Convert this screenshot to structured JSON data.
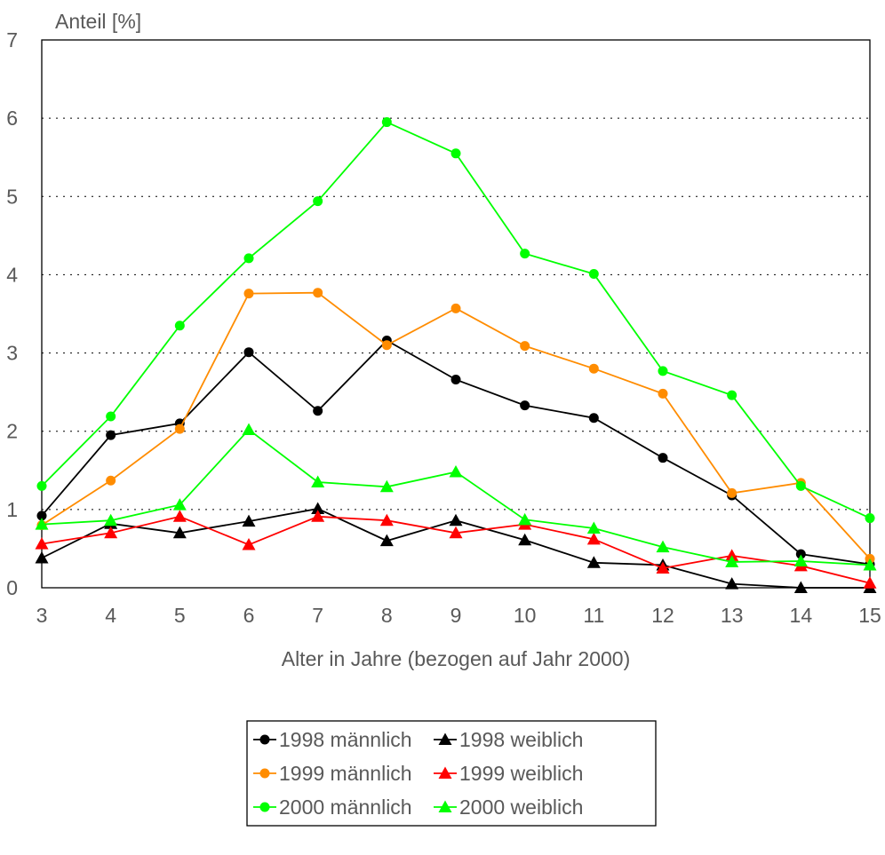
{
  "chart_data": {
    "type": "line",
    "ylabel": "Anteil [%]",
    "xlabel": "Alter in Jahre (bezogen auf Jahr 2000)",
    "x": [
      3,
      4,
      5,
      6,
      7,
      8,
      9,
      10,
      11,
      12,
      13,
      14,
      15
    ],
    "xlim": [
      3,
      15
    ],
    "ylim": [
      0,
      7
    ],
    "yticks": [
      0,
      1,
      2,
      3,
      4,
      5,
      6,
      7
    ],
    "grid": "horizontal dotted",
    "legend_position": "bottom-center",
    "series": [
      {
        "name": "1998 männlich",
        "color": "#000000",
        "marker": "circle",
        "values": [
          0.92,
          1.95,
          2.1,
          3.01,
          2.26,
          3.16,
          2.66,
          2.33,
          2.17,
          1.66,
          1.18,
          0.43,
          0.3
        ]
      },
      {
        "name": "1998 weiblich",
        "color": "#000000",
        "marker": "triangle",
        "values": [
          0.38,
          0.82,
          0.7,
          0.85,
          1.01,
          0.6,
          0.86,
          0.61,
          0.32,
          0.29,
          0.05,
          0.0,
          0.0
        ]
      },
      {
        "name": "1999 männlich",
        "color": "#ff8c00",
        "marker": "circle",
        "values": [
          0.8,
          1.37,
          2.03,
          3.76,
          3.77,
          3.1,
          3.57,
          3.09,
          2.8,
          2.48,
          1.21,
          1.34,
          0.37
        ]
      },
      {
        "name": "1999 weiblich",
        "color": "#ff0000",
        "marker": "triangle",
        "values": [
          0.56,
          0.7,
          0.91,
          0.55,
          0.91,
          0.86,
          0.7,
          0.81,
          0.62,
          0.25,
          0.41,
          0.28,
          0.06
        ]
      },
      {
        "name": "2000 männlich",
        "color": "#00ff00",
        "marker": "circle",
        "values": [
          1.3,
          2.19,
          3.35,
          4.21,
          4.94,
          5.95,
          5.55,
          4.27,
          4.01,
          2.77,
          2.46,
          1.3,
          0.89
        ]
      },
      {
        "name": "2000 weiblich",
        "color": "#00ff00",
        "marker": "triangle",
        "values": [
          0.81,
          0.86,
          1.06,
          2.02,
          1.35,
          1.29,
          1.48,
          0.87,
          0.76,
          0.52,
          0.33,
          0.34,
          0.29
        ]
      }
    ]
  }
}
